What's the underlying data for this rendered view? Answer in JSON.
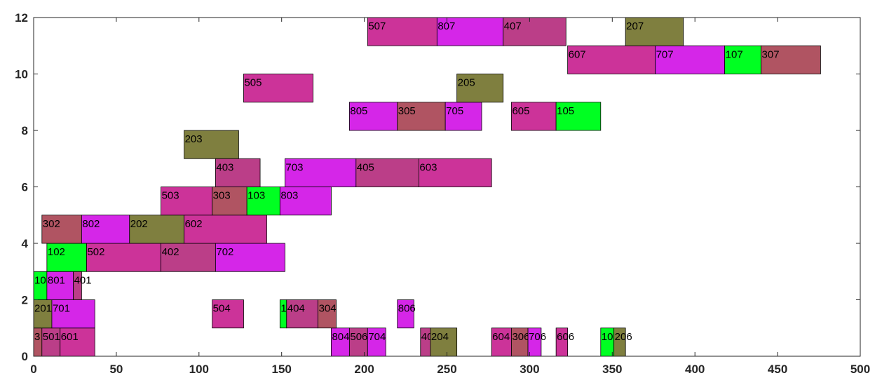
{
  "chart_data": {
    "type": "gantt",
    "xlim": [
      0,
      500
    ],
    "ylim": [
      0,
      12
    ],
    "x_ticks": [
      0,
      50,
      100,
      150,
      200,
      250,
      300,
      350,
      400,
      450,
      500
    ],
    "y_ticks": [
      0,
      2,
      4,
      6,
      8,
      10,
      12
    ],
    "grid": false,
    "colors": {
      "olive": "#7f7f3f",
      "green": "#00ff22",
      "magenta": "#d526e8",
      "pink": "#cc3399",
      "rose": "#b05462",
      "berry": "#bb3e88"
    },
    "bars": [
      {
        "label": "3",
        "start": 0,
        "end": 5,
        "y": 0,
        "color": "rose"
      },
      {
        "label": "501",
        "start": 5,
        "end": 16,
        "y": 0,
        "color": "berry"
      },
      {
        "label": "601",
        "start": 16,
        "end": 37,
        "y": 0,
        "color": "pink"
      },
      {
        "label": "804",
        "start": 180,
        "end": 191,
        "y": 0,
        "color": "magenta"
      },
      {
        "label": "506",
        "start": 191,
        "end": 202,
        "y": 0,
        "color": "berry"
      },
      {
        "label": "704",
        "start": 202,
        "end": 213,
        "y": 0,
        "color": "magenta"
      },
      {
        "label": "40",
        "start": 234,
        "end": 240,
        "y": 0,
        "color": "berry"
      },
      {
        "label": "204",
        "start": 240,
        "end": 256,
        "y": 0,
        "color": "olive"
      },
      {
        "label": "604",
        "start": 277,
        "end": 289,
        "y": 0,
        "color": "pink"
      },
      {
        "label": "306",
        "start": 289,
        "end": 299,
        "y": 0,
        "color": "rose"
      },
      {
        "label": "706",
        "start": 299,
        "end": 307,
        "y": 0,
        "color": "magenta"
      },
      {
        "label": "606",
        "start": 316,
        "end": 323,
        "y": 0,
        "color": "pink"
      },
      {
        "label": "10",
        "start": 343,
        "end": 351,
        "y": 0,
        "color": "green"
      },
      {
        "label": "206",
        "start": 351,
        "end": 358,
        "y": 0,
        "color": "olive"
      },
      {
        "label": "201",
        "start": 0,
        "end": 11,
        "y": 1,
        "color": "olive"
      },
      {
        "label": "701",
        "start": 11,
        "end": 37,
        "y": 1,
        "color": "magenta"
      },
      {
        "label": "504",
        "start": 108,
        "end": 127,
        "y": 1,
        "color": "pink"
      },
      {
        "label": "1",
        "start": 149,
        "end": 153,
        "y": 1,
        "color": "green"
      },
      {
        "label": "404",
        "start": 153,
        "end": 172,
        "y": 1,
        "color": "berry"
      },
      {
        "label": "304",
        "start": 172,
        "end": 183,
        "y": 1,
        "color": "rose"
      },
      {
        "label": "806",
        "start": 220,
        "end": 230,
        "y": 1,
        "color": "magenta"
      },
      {
        "label": "10",
        "start": 0,
        "end": 8,
        "y": 2,
        "color": "green"
      },
      {
        "label": "801",
        "start": 8,
        "end": 24,
        "y": 2,
        "color": "magenta"
      },
      {
        "label": "401",
        "start": 24,
        "end": 29,
        "y": 2,
        "color": "berry"
      },
      {
        "label": "102",
        "start": 8,
        "end": 32,
        "y": 3,
        "color": "green"
      },
      {
        "label": "502",
        "start": 32,
        "end": 77,
        "y": 3,
        "color": "pink"
      },
      {
        "label": "402",
        "start": 77,
        "end": 110,
        "y": 3,
        "color": "berry"
      },
      {
        "label": "702",
        "start": 110,
        "end": 152,
        "y": 3,
        "color": "magenta"
      },
      {
        "label": "302",
        "start": 5,
        "end": 29,
        "y": 4,
        "color": "rose"
      },
      {
        "label": "802",
        "start": 29,
        "end": 58,
        "y": 4,
        "color": "magenta"
      },
      {
        "label": "202",
        "start": 58,
        "end": 91,
        "y": 4,
        "color": "olive"
      },
      {
        "label": "602",
        "start": 91,
        "end": 141,
        "y": 4,
        "color": "pink"
      },
      {
        "label": "503",
        "start": 77,
        "end": 108,
        "y": 5,
        "color": "pink"
      },
      {
        "label": "303",
        "start": 108,
        "end": 129,
        "y": 5,
        "color": "rose"
      },
      {
        "label": "103",
        "start": 129,
        "end": 149,
        "y": 5,
        "color": "green"
      },
      {
        "label": "803",
        "start": 149,
        "end": 180,
        "y": 5,
        "color": "magenta"
      },
      {
        "label": "403",
        "start": 110,
        "end": 137,
        "y": 6,
        "color": "berry"
      },
      {
        "label": "703",
        "start": 152,
        "end": 195,
        "y": 6,
        "color": "magenta"
      },
      {
        "label": "405",
        "start": 195,
        "end": 233,
        "y": 6,
        "color": "berry"
      },
      {
        "label": "603",
        "start": 233,
        "end": 277,
        "y": 6,
        "color": "pink"
      },
      {
        "label": "203",
        "start": 91,
        "end": 124,
        "y": 7,
        "color": "olive"
      },
      {
        "label": "805",
        "start": 191,
        "end": 220,
        "y": 8,
        "color": "magenta"
      },
      {
        "label": "305",
        "start": 220,
        "end": 249,
        "y": 8,
        "color": "rose"
      },
      {
        "label": "705",
        "start": 249,
        "end": 271,
        "y": 8,
        "color": "magenta"
      },
      {
        "label": "605",
        "start": 289,
        "end": 316,
        "y": 8,
        "color": "pink"
      },
      {
        "label": "105",
        "start": 316,
        "end": 343,
        "y": 8,
        "color": "green"
      },
      {
        "label": "505",
        "start": 127,
        "end": 169,
        "y": 9,
        "color": "pink"
      },
      {
        "label": "205",
        "start": 256,
        "end": 284,
        "y": 9,
        "color": "olive"
      },
      {
        "label": "607",
        "start": 323,
        "end": 376,
        "y": 10,
        "color": "pink"
      },
      {
        "label": "707",
        "start": 376,
        "end": 418,
        "y": 10,
        "color": "magenta"
      },
      {
        "label": "107",
        "start": 418,
        "end": 440,
        "y": 10,
        "color": "green"
      },
      {
        "label": "307",
        "start": 440,
        "end": 476,
        "y": 10,
        "color": "rose"
      },
      {
        "label": "507",
        "start": 202,
        "end": 244,
        "y": 11,
        "color": "pink"
      },
      {
        "label": "807",
        "start": 244,
        "end": 284,
        "y": 11,
        "color": "magenta"
      },
      {
        "label": "407",
        "start": 284,
        "end": 322,
        "y": 11,
        "color": "berry"
      },
      {
        "label": "207",
        "start": 358,
        "end": 393,
        "y": 11,
        "color": "olive"
      }
    ]
  }
}
